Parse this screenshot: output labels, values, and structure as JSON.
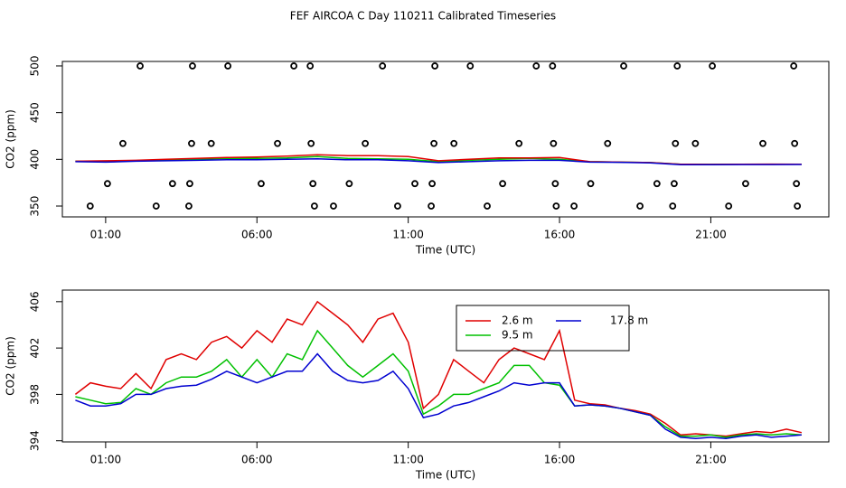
{
  "title": "FEF AIRCOA C  Day 110211  Calibrated Timeseries",
  "chart_data": [
    {
      "type": "line",
      "xlabel": "Time (UTC)",
      "ylabel": "CO2 (ppm)",
      "xlim": [
        -0.43,
        24.9
      ],
      "ylim": [
        338.4,
        504.8
      ],
      "xticks": [
        {
          "value": 1,
          "label": "01:00"
        },
        {
          "value": 6,
          "label": "06:00"
        },
        {
          "value": 11,
          "label": "11:00"
        },
        {
          "value": 16,
          "label": "16:00"
        },
        {
          "value": 21,
          "label": "21:00"
        }
      ],
      "yticks": [
        350,
        400,
        450,
        500
      ],
      "x": [
        0,
        1,
        2,
        3,
        4,
        5,
        6,
        7,
        8,
        9,
        10,
        11,
        12,
        13,
        14,
        15,
        16,
        17,
        18,
        19,
        20,
        21,
        22,
        23,
        24
      ],
      "series": [
        {
          "color": "#00c000",
          "values": [
            398,
            398,
            398.5,
            399,
            400,
            401,
            401,
            401.5,
            403,
            401,
            400.5,
            400,
            397.5,
            399,
            400,
            401,
            400,
            397.5,
            397,
            396.5,
            394.8,
            394.6,
            394.8,
            394.8,
            394.7
          ]
        },
        {
          "color": "#e00000",
          "values": [
            398,
            398.5,
            399,
            400,
            401,
            402,
            402.5,
            403.5,
            405,
            404,
            404,
            403,
            398.5,
            400,
            401.5,
            401.5,
            402,
            397.5,
            397,
            396.5,
            394.8,
            394.6,
            394.8,
            394.9,
            394.8
          ]
        },
        {
          "color": "#0000d0",
          "values": [
            397.5,
            397,
            398,
            398.5,
            399,
            399.5,
            399.5,
            400,
            400.5,
            399.5,
            399.5,
            398.5,
            396.5,
            397.5,
            398.5,
            399,
            399,
            397,
            396.8,
            396.2,
            394.3,
            394.3,
            394.4,
            394.4,
            394.5
          ]
        },
        {
          "mode": "points",
          "color": "#000000",
          "x": [
            2.14,
            3.87,
            5.04,
            7.22,
            7.76,
            10.15,
            11.88,
            13.05,
            15.23,
            15.77,
            18.12,
            19.89,
            21.05,
            23.74
          ],
          "values": [
            500,
            500,
            500,
            500,
            500,
            500,
            500,
            500,
            500,
            500,
            500,
            500,
            500,
            500
          ]
        },
        {
          "mode": "points",
          "color": "#000000",
          "x": [
            1.57,
            3.84,
            4.49,
            6.68,
            7.79,
            9.58,
            11.85,
            12.51,
            14.66,
            15.8,
            17.59,
            19.83,
            20.49,
            22.72,
            23.77
          ],
          "values": [
            417,
            417,
            417,
            417,
            417,
            417,
            417,
            417,
            417,
            417,
            417,
            417,
            417,
            417,
            417
          ]
        },
        {
          "mode": "points",
          "color": "#000000",
          "x": [
            1.06,
            3.21,
            3.78,
            6.14,
            7.85,
            9.05,
            11.22,
            11.79,
            14.12,
            15.86,
            17.03,
            19.22,
            19.79,
            22.15,
            23.83
          ],
          "values": [
            374,
            374,
            374,
            374,
            374,
            374,
            374,
            374,
            374,
            374,
            374,
            374,
            374,
            374,
            374
          ]
        },
        {
          "mode": "points",
          "color": "#000000",
          "x": [
            0.49,
            2.67,
            3.75,
            7.9,
            8.53,
            10.65,
            11.76,
            13.61,
            15.89,
            16.48,
            18.66,
            19.74,
            21.59,
            23.86
          ],
          "values": [
            350,
            350,
            350,
            350,
            350,
            350,
            350,
            350,
            350,
            350,
            350,
            350,
            350,
            350
          ]
        }
      ]
    },
    {
      "type": "line",
      "xlabel": "Time (UTC)",
      "ylabel": "CO2 (ppm)",
      "xlim": [
        -0.43,
        24.9
      ],
      "ylim": [
        393.9,
        407.0
      ],
      "xticks": [
        {
          "value": 1,
          "label": "01:00"
        },
        {
          "value": 6,
          "label": "06:00"
        },
        {
          "value": 11,
          "label": "11:00"
        },
        {
          "value": 16,
          "label": "16:00"
        },
        {
          "value": 21,
          "label": "21:00"
        }
      ],
      "yticks": [
        394,
        398,
        402,
        406
      ],
      "x": [
        0,
        0.5,
        1,
        1.5,
        2,
        2.5,
        3,
        3.5,
        4,
        4.5,
        5,
        5.5,
        6,
        6.5,
        7,
        7.5,
        8,
        8.5,
        9,
        9.5,
        10,
        10.5,
        11,
        11.5,
        12,
        12.5,
        13,
        13.5,
        14,
        14.5,
        15,
        15.5,
        16,
        16.5,
        17,
        17.5,
        18,
        18.5,
        19,
        19.5,
        20,
        20.5,
        21,
        21.5,
        22,
        22.5,
        23,
        23.5,
        24
      ],
      "series": [
        {
          "name": "2.6 m",
          "color": "#e00000",
          "values": [
            398,
            399,
            398.7,
            398.5,
            399.8,
            398.5,
            401,
            401.5,
            401,
            402.5,
            403,
            402,
            403.5,
            402.5,
            404.5,
            404,
            406,
            405,
            404,
            402.5,
            404.5,
            405,
            402.5,
            396.8,
            398,
            401,
            400,
            399,
            401,
            402,
            401.5,
            401,
            403.5,
            397.5,
            397.2,
            397.1,
            396.8,
            396.6,
            396.3,
            395.5,
            394.5,
            394.6,
            394.5,
            394.4,
            394.6,
            394.8,
            394.7,
            395,
            394.7
          ]
        },
        {
          "name": "9.5 m",
          "color": "#00c000",
          "values": [
            397.8,
            397.5,
            397.2,
            397.3,
            398.5,
            398,
            399,
            399.5,
            399.5,
            400,
            401,
            399.5,
            401,
            399.5,
            401.5,
            401,
            403.5,
            402,
            400.5,
            399.5,
            400.5,
            401.5,
            400,
            396.3,
            397,
            398,
            398,
            398.5,
            399,
            400.5,
            400.5,
            399,
            398.8,
            397,
            397.1,
            397,
            396.8,
            396.5,
            396.2,
            395.2,
            394.4,
            394.4,
            394.5,
            394.3,
            394.5,
            394.6,
            394.5,
            394.6,
            394.5
          ]
        },
        {
          "name": "17.8 m",
          "color": "#0000d0",
          "values": [
            397.5,
            397,
            397,
            397.2,
            398,
            398,
            398.5,
            398.7,
            398.8,
            399.3,
            400,
            399.5,
            399,
            399.5,
            400,
            400,
            401.5,
            400,
            399.2,
            399,
            399.2,
            400,
            398.5,
            396,
            396.3,
            397,
            397.3,
            397.8,
            398.3,
            399,
            398.8,
            399,
            399,
            397,
            397.1,
            397,
            396.8,
            396.5,
            396.2,
            395,
            394.3,
            394.2,
            394.3,
            394.2,
            394.4,
            394.5,
            394.3,
            394.4,
            394.5
          ]
        }
      ]
    }
  ]
}
